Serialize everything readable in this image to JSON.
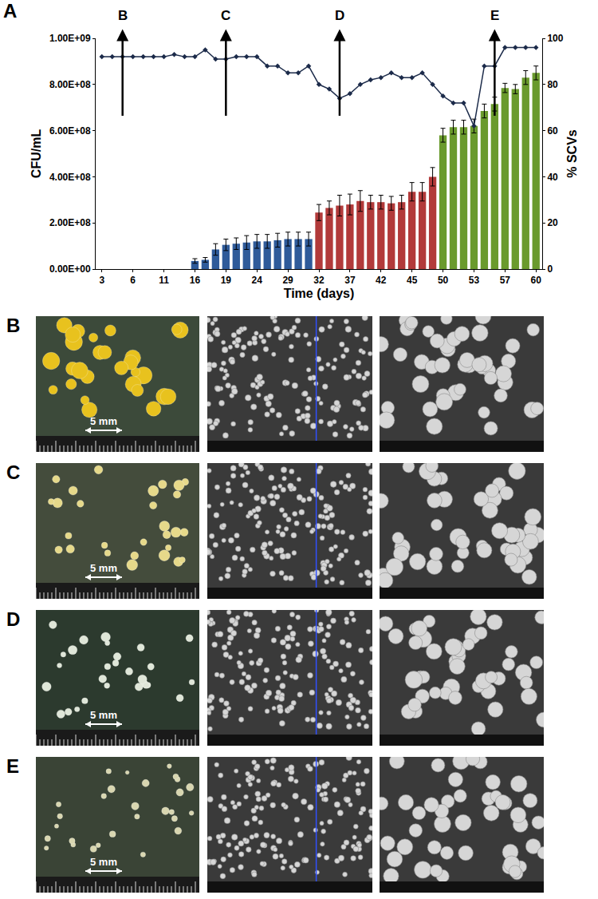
{
  "chart_data": {
    "type": "bar",
    "panel_label": "A",
    "x_label": "Time (days)",
    "y_label": "CFU/mL",
    "y2_label": "% SCVs",
    "grid": false,
    "categories": [
      "3",
      null,
      null,
      "6",
      null,
      null,
      "11",
      null,
      null,
      "16",
      null,
      null,
      "19",
      null,
      null,
      "24",
      null,
      null,
      "29",
      null,
      null,
      "32",
      null,
      null,
      "37",
      null,
      null,
      "42",
      null,
      null,
      "45",
      null,
      null,
      "50",
      null,
      null,
      "53",
      null,
      null,
      "57",
      null,
      null,
      "60"
    ],
    "ylim": [
      0,
      1000000000
    ],
    "yticks": [
      {
        "value": 0,
        "label": "0.00E+00"
      },
      {
        "value": 200000000,
        "label": "2.00E+08"
      },
      {
        "value": 400000000,
        "label": "4.00E+08"
      },
      {
        "value": 600000000,
        "label": "6.00E+08"
      },
      {
        "value": 800000000,
        "label": "8.00E+08"
      },
      {
        "value": 1000000000,
        "label": "1.00E+09"
      }
    ],
    "y2lim": [
      0,
      100
    ],
    "y2ticks": [
      0,
      20,
      40,
      60,
      80,
      100
    ],
    "series": [
      {
        "type": "bar",
        "values": [
          null,
          null,
          null,
          null,
          null,
          null,
          null,
          null,
          null,
          35000000,
          40000000,
          85000000,
          105000000,
          110000000,
          115000000,
          120000000,
          120000000,
          125000000,
          130000000,
          130000000,
          130000000,
          245000000,
          265000000,
          275000000,
          280000000,
          295000000,
          290000000,
          290000000,
          285000000,
          290000000,
          335000000,
          335000000,
          400000000,
          580000000,
          615000000,
          615000000,
          620000000,
          685000000,
          715000000,
          785000000,
          780000000,
          830000000,
          850000000
        ],
        "errors": [
          null,
          null,
          null,
          null,
          null,
          null,
          null,
          null,
          null,
          10000000,
          10000000,
          25000000,
          25000000,
          25000000,
          30000000,
          30000000,
          30000000,
          30000000,
          30000000,
          30000000,
          30000000,
          35000000,
          30000000,
          45000000,
          45000000,
          45000000,
          30000000,
          30000000,
          30000000,
          30000000,
          40000000,
          40000000,
          40000000,
          30000000,
          30000000,
          30000000,
          30000000,
          30000000,
          30000000,
          20000000,
          20000000,
          30000000,
          30000000
        ],
        "colors": [
          null,
          null,
          null,
          null,
          null,
          null,
          null,
          null,
          null,
          "#2f5b9a",
          "#2f5b9a",
          "#2f5b9a",
          "#2f5b9a",
          "#2f5b9a",
          "#2f5b9a",
          "#2f5b9a",
          "#2f5b9a",
          "#2f5b9a",
          "#2f5b9a",
          "#2f5b9a",
          "#2f5b9a",
          "#b23a3a",
          "#b23a3a",
          "#b23a3a",
          "#b23a3a",
          "#b23a3a",
          "#b23a3a",
          "#b23a3a",
          "#b23a3a",
          "#b23a3a",
          "#b23a3a",
          "#b23a3a",
          "#b23a3a",
          "#6a9a2d",
          "#6a9a2d",
          "#6a9a2d",
          "#6a9a2d",
          "#6a9a2d",
          "#6a9a2d",
          "#6a9a2d",
          "#6a9a2d",
          "#6a9a2d",
          "#6a9a2d"
        ]
      },
      {
        "type": "line",
        "axis": "y2",
        "color": "#1c2b4a",
        "marker": "diamond",
        "values": [
          92,
          92,
          92,
          92,
          92,
          92,
          92,
          93,
          92,
          92,
          95,
          91,
          91,
          92,
          92,
          92,
          88,
          88,
          85,
          85,
          88,
          80,
          78,
          74,
          76,
          80,
          82,
          83,
          85,
          83,
          83,
          85,
          80,
          75,
          72,
          72,
          62,
          88,
          88,
          96,
          96,
          96,
          96
        ]
      }
    ],
    "arrows": [
      {
        "label": "B",
        "x": 2
      },
      {
        "label": "C",
        "x": 12
      },
      {
        "label": "D",
        "x": 23
      },
      {
        "label": "E",
        "x": 38
      }
    ]
  },
  "image_panels": [
    {
      "label": "B",
      "scale_label": "5 mm"
    },
    {
      "label": "C",
      "scale_label": "5 mm"
    },
    {
      "label": "D",
      "scale_label": "5 mm"
    },
    {
      "label": "E",
      "scale_label": "5 mm"
    }
  ]
}
